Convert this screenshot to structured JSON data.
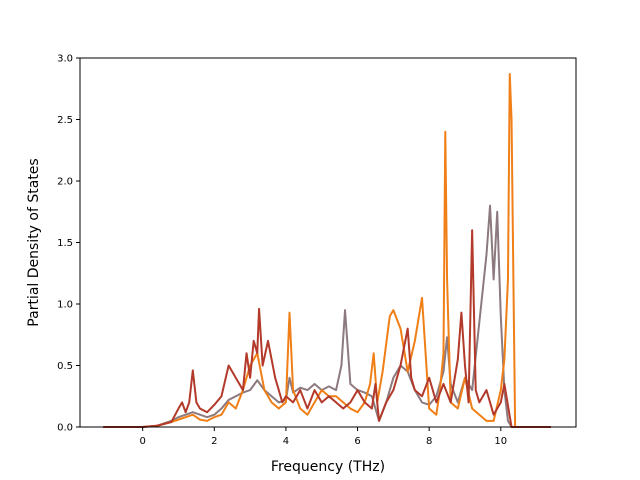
{
  "chart_data": {
    "type": "line",
    "title": "",
    "xlabel": "Frequency (THz)",
    "ylabel": "Partial Density of States",
    "xlim": [
      -1.75,
      12.1
    ],
    "ylim": [
      0,
      3.0
    ],
    "xticks": [
      0,
      2,
      4,
      6,
      8,
      10
    ],
    "yticks": [
      0.0,
      0.5,
      1.0,
      1.5,
      2.0,
      2.5,
      3.0
    ],
    "xtick_labels": [
      "0",
      "2",
      "4",
      "6",
      "8",
      "10"
    ],
    "ytick_labels": [
      "0.0",
      "0.5",
      "1.0",
      "1.5",
      "2.0",
      "2.5",
      "3.0"
    ],
    "grid": false,
    "legend": "none",
    "series": [
      {
        "color": "#8c7a7e",
        "x": [
          -1.1,
          0,
          0.4,
          0.8,
          1.0,
          1.2,
          1.4,
          1.6,
          1.8,
          2.0,
          2.2,
          2.4,
          2.6,
          2.8,
          3.0,
          3.2,
          3.4,
          3.6,
          3.8,
          4.0,
          4.1,
          4.2,
          4.4,
          4.6,
          4.8,
          5.0,
          5.2,
          5.4,
          5.55,
          5.65,
          5.8,
          6.0,
          6.2,
          6.4,
          6.6,
          6.8,
          7.0,
          7.2,
          7.4,
          7.6,
          7.8,
          8.0,
          8.2,
          8.4,
          8.5,
          8.6,
          8.8,
          9.0,
          9.2,
          9.4,
          9.6,
          9.7,
          9.8,
          9.9,
          10.0,
          10.1,
          10.2,
          10.3,
          11.4
        ],
        "y": [
          0,
          0,
          0.01,
          0.05,
          0.08,
          0.1,
          0.12,
          0.1,
          0.08,
          0.1,
          0.15,
          0.22,
          0.25,
          0.28,
          0.3,
          0.38,
          0.3,
          0.25,
          0.2,
          0.22,
          0.4,
          0.28,
          0.32,
          0.3,
          0.35,
          0.3,
          0.33,
          0.3,
          0.5,
          0.95,
          0.35,
          0.3,
          0.28,
          0.25,
          0.05,
          0.2,
          0.4,
          0.5,
          0.45,
          0.3,
          0.2,
          0.18,
          0.25,
          0.45,
          0.73,
          0.35,
          0.2,
          0.4,
          0.3,
          0.85,
          1.4,
          1.8,
          1.2,
          1.75,
          0.9,
          0.3,
          0.05,
          0,
          0
        ]
      },
      {
        "color": "#f07f17",
        "x": [
          -1.1,
          0,
          0.4,
          0.8,
          1.0,
          1.2,
          1.4,
          1.6,
          1.8,
          2.0,
          2.2,
          2.4,
          2.6,
          2.8,
          3.0,
          3.2,
          3.4,
          3.6,
          3.8,
          4.0,
          4.1,
          4.2,
          4.4,
          4.6,
          4.8,
          5.0,
          5.2,
          5.4,
          5.6,
          5.8,
          6.0,
          6.2,
          6.35,
          6.45,
          6.55,
          6.7,
          6.9,
          7.0,
          7.2,
          7.4,
          7.6,
          7.8,
          8.0,
          8.2,
          8.3,
          8.4,
          8.45,
          8.5,
          8.6,
          8.8,
          9.0,
          9.2,
          9.4,
          9.6,
          9.8,
          10.0,
          10.1,
          10.2,
          10.25,
          10.3,
          10.4,
          11.4
        ],
        "y": [
          0,
          0,
          0.01,
          0.04,
          0.06,
          0.08,
          0.1,
          0.06,
          0.05,
          0.08,
          0.1,
          0.2,
          0.15,
          0.3,
          0.5,
          0.6,
          0.3,
          0.2,
          0.15,
          0.2,
          0.93,
          0.3,
          0.15,
          0.1,
          0.2,
          0.3,
          0.25,
          0.25,
          0.2,
          0.15,
          0.12,
          0.2,
          0.35,
          0.6,
          0.2,
          0.45,
          0.9,
          0.95,
          0.8,
          0.45,
          0.7,
          1.05,
          0.15,
          0.1,
          0.3,
          0.6,
          2.4,
          1.2,
          0.2,
          0.15,
          0.4,
          0.15,
          0.1,
          0.05,
          0.05,
          0.3,
          0.55,
          1.2,
          2.87,
          2.5,
          0,
          0
        ]
      },
      {
        "color": "#b33a2a",
        "x": [
          -1.1,
          0,
          0.4,
          0.8,
          1.0,
          1.1,
          1.2,
          1.3,
          1.4,
          1.5,
          1.6,
          1.8,
          2.0,
          2.2,
          2.4,
          2.6,
          2.8,
          2.9,
          3.0,
          3.1,
          3.2,
          3.25,
          3.35,
          3.5,
          3.7,
          3.9,
          4.0,
          4.2,
          4.4,
          4.6,
          4.8,
          5.0,
          5.2,
          5.4,
          5.6,
          5.8,
          6.0,
          6.2,
          6.4,
          6.5,
          6.6,
          6.8,
          7.0,
          7.2,
          7.4,
          7.5,
          7.6,
          7.8,
          8.0,
          8.2,
          8.4,
          8.6,
          8.8,
          8.9,
          9.0,
          9.1,
          9.2,
          9.3,
          9.4,
          9.6,
          9.8,
          10.0,
          10.1,
          10.3,
          11.4
        ],
        "y": [
          0,
          0,
          0.01,
          0.04,
          0.15,
          0.2,
          0.12,
          0.2,
          0.46,
          0.2,
          0.15,
          0.12,
          0.18,
          0.25,
          0.5,
          0.4,
          0.3,
          0.6,
          0.4,
          0.7,
          0.6,
          0.96,
          0.5,
          0.7,
          0.4,
          0.2,
          0.25,
          0.2,
          0.3,
          0.15,
          0.3,
          0.2,
          0.25,
          0.2,
          0.15,
          0.2,
          0.3,
          0.2,
          0.15,
          0.35,
          0.05,
          0.2,
          0.3,
          0.5,
          0.8,
          0.4,
          0.3,
          0.25,
          0.4,
          0.2,
          0.35,
          0.2,
          0.55,
          0.93,
          0.5,
          0.2,
          1.6,
          0.3,
          0.2,
          0.3,
          0.1,
          0.2,
          0.35,
          0,
          0
        ]
      }
    ]
  }
}
